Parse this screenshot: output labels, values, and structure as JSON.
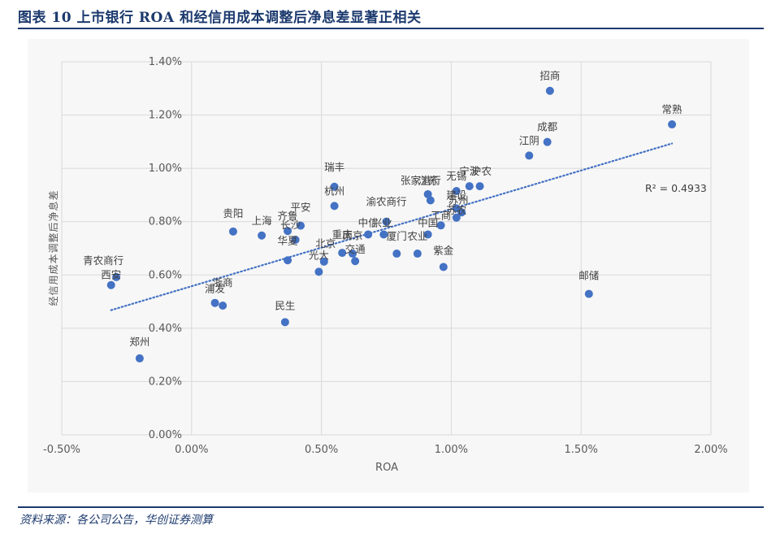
{
  "title": "图表 10 上市银行 ROA 和经信用成本调整后净息差显著正相关",
  "source": "资料来源：各公司公告，华创证券测算",
  "chart_data": {
    "type": "scatter",
    "xlabel": "ROA",
    "ylabel": "经信用成本调整后净息差",
    "xlim": [
      -0.005,
      0.02
    ],
    "ylim": [
      0.0,
      0.014
    ],
    "x_ticks": [
      "-0.50%",
      "0.00%",
      "0.50%",
      "1.00%",
      "1.50%",
      "2.00%"
    ],
    "x_tick_values": [
      -0.005,
      0.0,
      0.005,
      0.01,
      0.015,
      0.02
    ],
    "y_ticks": [
      "0.00%",
      "0.20%",
      "0.40%",
      "0.60%",
      "0.80%",
      "1.00%",
      "1.20%",
      "1.40%"
    ],
    "y_tick_values": [
      0.0,
      0.002,
      0.004,
      0.006,
      0.008,
      0.01,
      0.012,
      0.014
    ],
    "grid": true,
    "point_color": "#4472c4",
    "trendline": {
      "type": "linear",
      "color": "#4472c4",
      "style": "dotted",
      "x_range": [
        -0.0031,
        0.0185
      ],
      "r2_label": "R² = 0.4933"
    },
    "points": [
      {
        "name": "招商",
        "x": 0.0138,
        "y": 0.01291
      },
      {
        "name": "常熟",
        "x": 0.0185,
        "y": 0.01165
      },
      {
        "name": "成都",
        "x": 0.0137,
        "y": 0.01099
      },
      {
        "name": "江阴",
        "x": 0.013,
        "y": 0.01048
      },
      {
        "name": "邮储",
        "x": 0.0153,
        "y": 0.00529
      },
      {
        "name": "瑞丰",
        "x": 0.0055,
        "y": 0.00931
      },
      {
        "name": "杭州",
        "x": 0.0055,
        "y": 0.00859
      },
      {
        "name": "宁波",
        "x": 0.0107,
        "y": 0.00933
      },
      {
        "name": "沪农",
        "x": 0.0111,
        "y": 0.00933
      },
      {
        "name": "江苏",
        "x": 0.0091,
        "y": 0.00903
      },
      {
        "name": "无锡",
        "x": 0.0102,
        "y": 0.00915
      },
      {
        "name": "张家港行",
        "x": 0.0092,
        "y": 0.0088
      },
      {
        "name": "建设",
        "x": 0.0102,
        "y": 0.0085
      },
      {
        "name": "苏州",
        "x": 0.0104,
        "y": 0.00835
      },
      {
        "name": "苏农",
        "x": 0.0102,
        "y": 0.00815
      },
      {
        "name": "工商",
        "x": 0.0096,
        "y": 0.00786
      },
      {
        "name": "中国",
        "x": 0.0091,
        "y": 0.00752
      },
      {
        "name": "渝农商行",
        "x": 0.0075,
        "y": 0.008
      },
      {
        "name": "中信",
        "x": 0.0068,
        "y": 0.00752
      },
      {
        "name": "兴业",
        "x": 0.0074,
        "y": 0.00752
      },
      {
        "name": "厦门",
        "x": 0.0079,
        "y": 0.0068
      },
      {
        "name": "农业",
        "x": 0.0087,
        "y": 0.0068
      },
      {
        "name": "紫金",
        "x": 0.0097,
        "y": 0.0063
      },
      {
        "name": "贵阳",
        "x": 0.0016,
        "y": 0.00763
      },
      {
        "name": "上海",
        "x": 0.0027,
        "y": 0.00748
      },
      {
        "name": "齐鲁",
        "x": 0.0037,
        "y": 0.00765
      },
      {
        "name": "平安",
        "x": 0.0042,
        "y": 0.00785
      },
      {
        "name": "长沙",
        "x": 0.004,
        "y": 0.00732
      },
      {
        "name": "华夏",
        "x": 0.0037,
        "y": 0.00655
      },
      {
        "name": "北京",
        "x": 0.0051,
        "y": 0.0065
      },
      {
        "name": "光大",
        "x": 0.0049,
        "y": 0.00612
      },
      {
        "name": "重庆",
        "x": 0.0058,
        "y": 0.00683
      },
      {
        "name": "南京",
        "x": 0.0062,
        "y": 0.0068
      },
      {
        "name": "交通",
        "x": 0.0063,
        "y": 0.00652
      },
      {
        "name": "民生",
        "x": 0.0036,
        "y": 0.00423
      },
      {
        "name": "浦发",
        "x": 0.0009,
        "y": 0.00495
      },
      {
        "name": "浙商",
        "x": 0.0012,
        "y": 0.00485
      },
      {
        "name": "青农商行",
        "x": -0.0029,
        "y": 0.00592
      },
      {
        "name": "西安",
        "x": -0.0031,
        "y": 0.00562
      },
      {
        "name": "郑州",
        "x": -0.002,
        "y": 0.00287
      }
    ]
  }
}
